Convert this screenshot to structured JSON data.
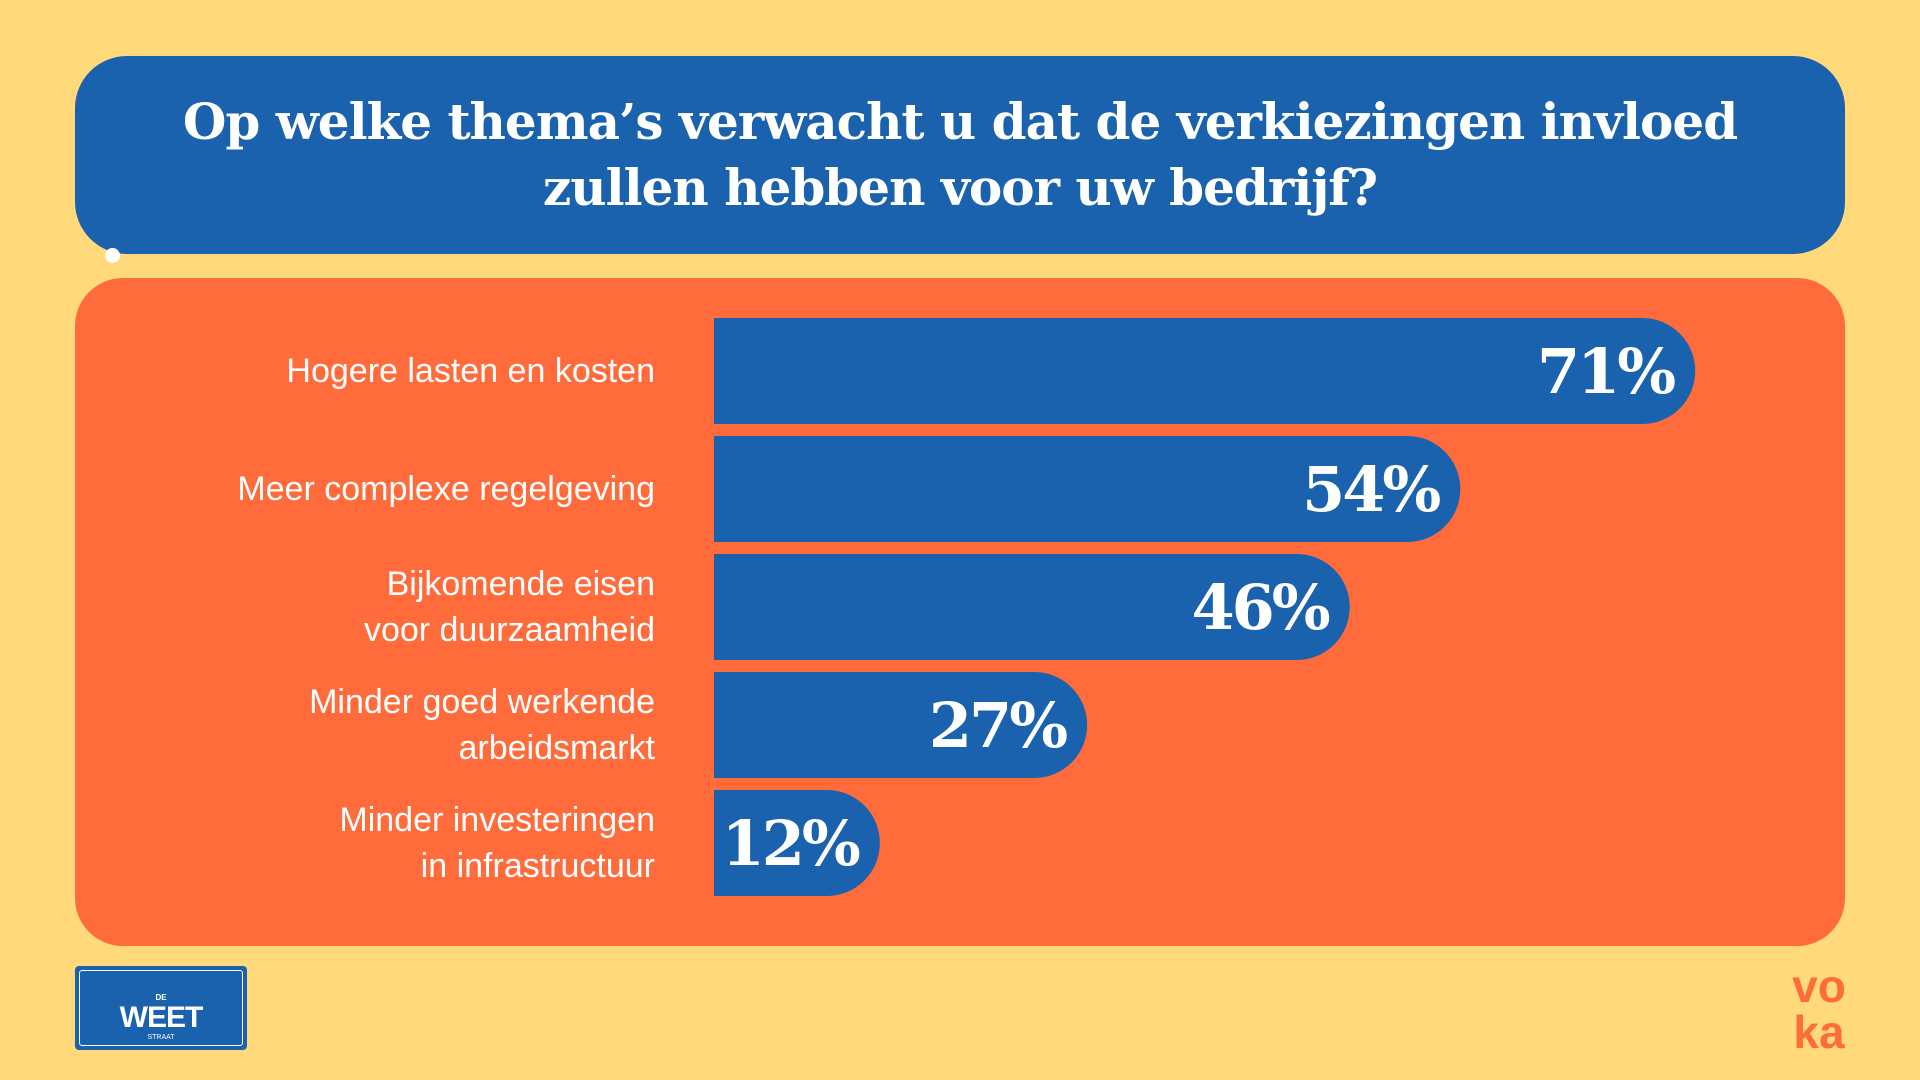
{
  "title": {
    "line1": "Op welke thema’s verwacht u dat de verkiezingen invloed",
    "line2": "zullen hebben voor uw bedrijf?"
  },
  "colors": {
    "background": "#FFD97A",
    "title_box": "#1A62AD",
    "panel": "#FF6B3A",
    "bar": "#1A62AD",
    "text": "#FFFFFF",
    "voka_logo": "#FF6B3A"
  },
  "chart_data": {
    "type": "bar",
    "orientation": "horizontal",
    "title": "Op welke thema’s verwacht u dat de verkiezingen invloed zullen hebben voor uw bedrijf?",
    "categories": [
      "Hogere lasten en kosten",
      "Meer complexe regelgeving",
      "Bijkomende eisen voor duurzaamheid",
      "Minder goed werkende arbeidsmarkt",
      "Minder investeringen in infrastructuur"
    ],
    "label_lines": [
      [
        "Hogere lasten en kosten"
      ],
      [
        "Meer complexe regelgeving"
      ],
      [
        "Bijkomende eisen",
        "voor duurzaamheid"
      ],
      [
        "Minder goed werkende",
        "arbeidsmarkt"
      ],
      [
        "Minder investeringen",
        "in infrastructuur"
      ]
    ],
    "values": [
      71,
      54,
      46,
      27,
      12
    ],
    "value_labels": [
      "71%",
      "54%",
      "46%",
      "27%",
      "12%"
    ],
    "unit": "%",
    "xlim": [
      0,
      100
    ]
  },
  "footer": {
    "weet_logo": {
      "top_text": "",
      "de": "DE",
      "word": "WEET",
      "straat": "STRAAT"
    },
    "voka_logo": {
      "line1": "vo",
      "line2": "ka"
    }
  }
}
